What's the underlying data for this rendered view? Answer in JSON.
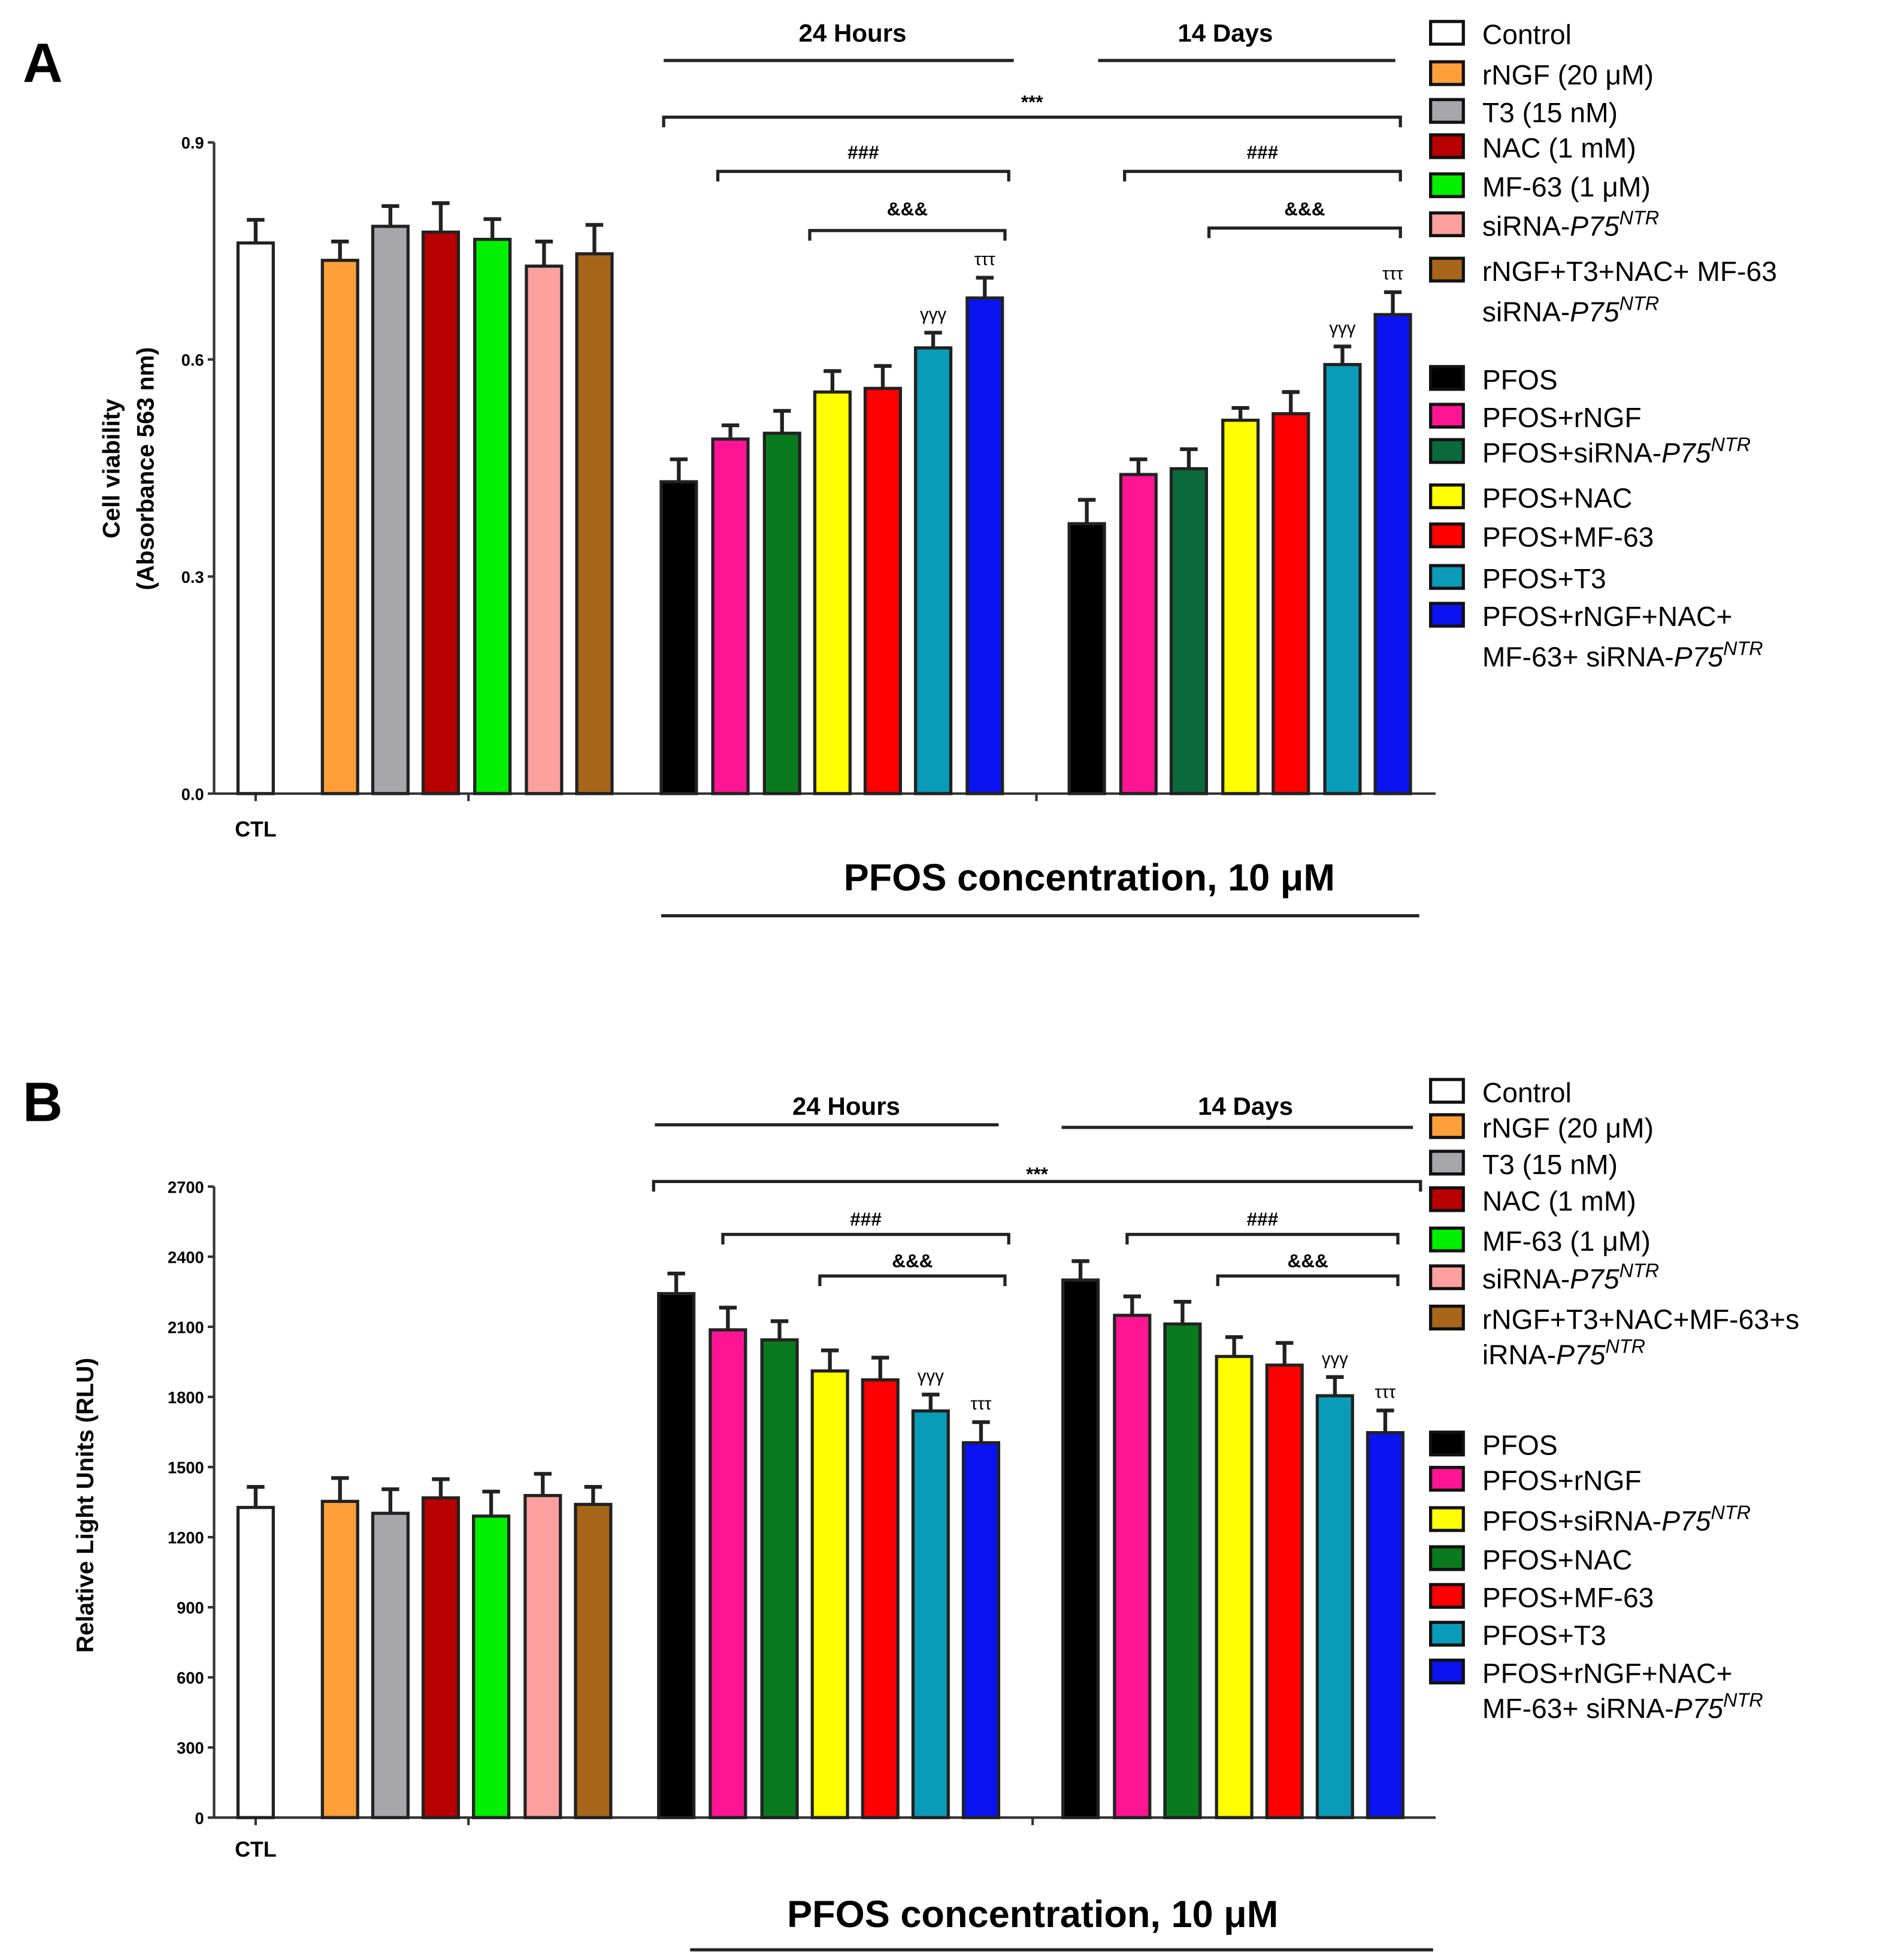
{
  "chart_data": [
    {
      "type": "bar",
      "panel_label": "A",
      "title": "",
      "xlabel": "PFOS concentration, 10 μM",
      "ylabel_lines": [
        "Cell viability",
        "(Absorbance 563 nm)"
      ],
      "ylim": [
        0,
        0.9
      ],
      "yticks": [
        "0.0",
        "0.3",
        "0.6",
        "0.9"
      ],
      "ytick_values": [
        0,
        0.3,
        0.6,
        0.9
      ],
      "ctl_label": "CTL",
      "groups": [
        {
          "name": "Control",
          "values": [
            0.761,
            0.737,
            0.784,
            0.776,
            0.766,
            0.729,
            0.746
          ],
          "errors": [
            0.032,
            0.026,
            0.028,
            0.04,
            0.028,
            0.034,
            0.04
          ],
          "colors": [
            "#ffffff",
            "#ff9f3a",
            "#a6a6ab",
            "#b80000",
            "#00f000",
            "#ffa0a0",
            "#a8661a"
          ]
        },
        {
          "name": "24 Hours",
          "values": [
            0.431,
            0.49,
            0.498,
            0.555,
            0.56,
            0.616,
            0.685
          ],
          "errors": [
            0.031,
            0.019,
            0.031,
            0.029,
            0.031,
            0.021,
            0.028
          ],
          "colors": [
            "#000000",
            "#ff1493",
            "#0a7a1e",
            "#ffff00",
            "#ff0000",
            "#0a9bb8",
            "#0a14f0"
          ]
        },
        {
          "name": "14 Days",
          "values": [
            0.373,
            0.441,
            0.449,
            0.516,
            0.525,
            0.593,
            0.662
          ],
          "errors": [
            0.033,
            0.021,
            0.027,
            0.017,
            0.03,
            0.025,
            0.031
          ],
          "colors": [
            "#000000",
            "#ff1493",
            "#0a6a3c",
            "#ffff00",
            "#ff0000",
            "#0a9bb8",
            "#0a14f0"
          ]
        }
      ],
      "group_headers": [
        "24 Hours",
        "14 Days"
      ],
      "annotations": {
        "all": "***",
        "hash": "###",
        "amp": "&&&",
        "gamma": "γγγ",
        "tau": "τττ"
      },
      "legend": {
        "placement": "right",
        "items": [
          {
            "label": "Control",
            "color": "#ffffff"
          },
          {
            "label": "rNGF (20 μM)",
            "color": "#ff9f3a"
          },
          {
            "label": "T3 (15 nM)",
            "color": "#a6a6ab"
          },
          {
            "label": "NAC (1 mM)",
            "color": "#b80000"
          },
          {
            "label": "MF-63 (1 μM)",
            "color": "#00f000"
          },
          {
            "label": "siRNA-",
            "italic": "P75",
            "sup": "NTR",
            "color": "#ffa0a0"
          },
          {
            "label": "rNGF+T3+NAC+ MF-63",
            "line2": "siRNA-",
            "italic2": "P75",
            "sup2": "NTR",
            "color": "#a8661a"
          },
          {
            "label": "PFOS",
            "color": "#000000"
          },
          {
            "label": "PFOS+rNGF",
            "color": "#ff1493"
          },
          {
            "label": "PFOS+siRNA-",
            "italic": "P75",
            "sup": "NTR",
            "color": "#0a6a3c"
          },
          {
            "label": "PFOS+NAC",
            "color": "#ffff00"
          },
          {
            "label": "PFOS+MF-63",
            "color": "#ff0000"
          },
          {
            "label": "PFOS+T3",
            "color": "#0a9bb8"
          },
          {
            "label": "PFOS+rNGF+NAC+",
            "line2": "MF-63+ siRNA-",
            "italic2": "P75",
            "sup2": "NTR",
            "color": "#0a14f0"
          }
        ]
      }
    },
    {
      "type": "bar",
      "panel_label": "B",
      "title": "",
      "xlabel": "PFOS concentration, 10 μM",
      "ylabel_lines": [
        "Relative Light Units (RLU)"
      ],
      "ylim": [
        0,
        2700
      ],
      "yticks": [
        "0",
        "300",
        "600",
        "900",
        "1200",
        "1500",
        "1800",
        "2100",
        "2400",
        "2700"
      ],
      "ytick_values": [
        0,
        300,
        600,
        900,
        1200,
        1500,
        1800,
        2100,
        2400,
        2700
      ],
      "ctl_label": "CTL",
      "groups": [
        {
          "name": "Control",
          "values": [
            1327,
            1353,
            1302,
            1368,
            1290,
            1378,
            1340
          ],
          "errors": [
            88,
            100,
            103,
            80,
            105,
            93,
            75
          ],
          "colors": [
            "#ffffff",
            "#ff9f3a",
            "#a6a6ab",
            "#b80000",
            "#00f000",
            "#ffa0a0",
            "#a8661a"
          ]
        },
        {
          "name": "24 Hours",
          "values": [
            2242,
            2087,
            2044,
            1911,
            1873,
            1740,
            1604
          ],
          "errors": [
            86,
            95,
            80,
            88,
            95,
            70,
            88
          ],
          "colors": [
            "#000000",
            "#ff1493",
            "#0a7a1e",
            "#ffff00",
            "#ff0000",
            "#0a9bb8",
            "#0a14f0"
          ]
        },
        {
          "name": "14 Days",
          "values": [
            2300,
            2149,
            2112,
            1973,
            1936,
            1805,
            1647
          ],
          "errors": [
            81,
            81,
            95,
            83,
            95,
            80,
            95
          ],
          "colors": [
            "#000000",
            "#ff1493",
            "#0a7a1e",
            "#ffff00",
            "#ff0000",
            "#0a9bb8",
            "#0a14f0"
          ]
        }
      ],
      "group_headers": [
        "24 Hours",
        "14 Days"
      ],
      "annotations": {
        "all": "***",
        "hash": "###",
        "amp": "&&&",
        "gamma": "γγγ",
        "tau": "τττ"
      },
      "legend": {
        "placement": "right",
        "items": [
          {
            "label": "Control",
            "color": "#ffffff"
          },
          {
            "label": "rNGF (20 μM)",
            "color": "#ff9f3a"
          },
          {
            "label": "T3 (15 nM)",
            "color": "#a6a6ab"
          },
          {
            "label": "NAC (1 mM)",
            "color": "#b80000"
          },
          {
            "label": "MF-63 (1 μM)",
            "color": "#00f000"
          },
          {
            "label": "siRNA-",
            "italic": "P75",
            "sup": "NTR",
            "color": "#ffa0a0"
          },
          {
            "label": "rNGF+T3+NAC+MF-63+s",
            "line2": "iRNA-",
            "italic2": "P75",
            "sup2": "NTR",
            "color": "#a8661a"
          },
          {
            "label": "PFOS",
            "color": "#000000"
          },
          {
            "label": "PFOS+rNGF",
            "color": "#ff1493"
          },
          {
            "label": "PFOS+siRNA-",
            "italic": "P75",
            "sup": "NTR",
            "color": "#ffff00"
          },
          {
            "label": "PFOS+NAC",
            "color": "#0a7a1e"
          },
          {
            "label": "PFOS+MF-63",
            "color": "#ff0000"
          },
          {
            "label": "PFOS+T3",
            "color": "#0a9bb8"
          },
          {
            "label": "PFOS+rNGF+NAC+",
            "line2": "MF-63+ siRNA-",
            "italic2": "P75",
            "sup2": "NTR",
            "color": "#0a14f0"
          }
        ]
      }
    }
  ]
}
